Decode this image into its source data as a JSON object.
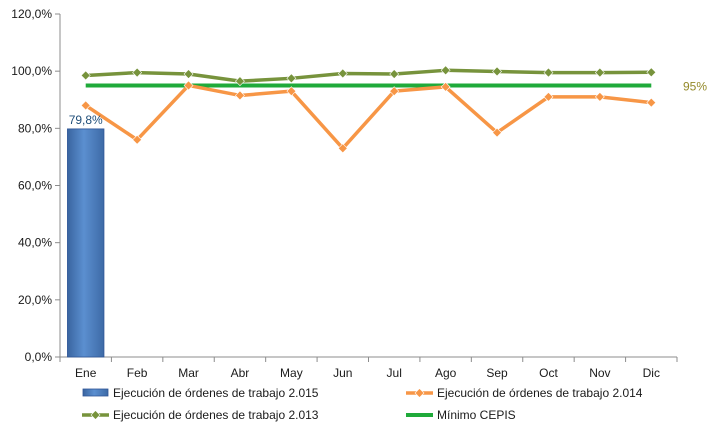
{
  "chart_data": {
    "type": "bar",
    "categories": [
      "Ene",
      "Feb",
      "Mar",
      "Abr",
      "May",
      "Jun",
      "Jul",
      "Ago",
      "Sep",
      "Oct",
      "Nov",
      "Dic"
    ],
    "ylim": [
      0,
      120
    ],
    "yticks": [
      "0,0%",
      "20,0%",
      "40,0%",
      "60,0%",
      "80,0%",
      "100,0%",
      "120,0%"
    ],
    "series": [
      {
        "name": "Ejecución de órdenes de trabajo 2.015",
        "kind": "bar",
        "color": "#4f81bd",
        "values": [
          79.8,
          null,
          null,
          null,
          null,
          null,
          null,
          null,
          null,
          null,
          null,
          null
        ],
        "data_labels": [
          "79,8%",
          "",
          "",
          "",
          "",
          "",
          "",
          "",
          "",
          "",
          "",
          ""
        ]
      },
      {
        "name": "Ejecución de órdenes de trabajo 2.014",
        "kind": "line",
        "color": "#f79646",
        "values": [
          88,
          76,
          95,
          91.5,
          93,
          73,
          93,
          94.5,
          78.5,
          91,
          91,
          89
        ]
      },
      {
        "name": "Ejecución de órdenes de trabajo 2.013",
        "kind": "line",
        "color": "#77933c",
        "values": [
          98.5,
          99.5,
          99,
          96.5,
          97.5,
          99.2,
          99,
          100.3,
          99.9,
          99.5,
          99.5,
          99.6
        ]
      },
      {
        "name": "Mínimo CEPIS",
        "kind": "line",
        "color": "#1faa3a",
        "values": [
          95,
          95,
          95,
          95,
          95,
          95,
          95,
          95,
          95,
          95,
          95,
          95
        ],
        "end_label": "95%",
        "end_label_color": "#948a2a"
      }
    ],
    "legend_position": "bottom",
    "grid": false
  }
}
